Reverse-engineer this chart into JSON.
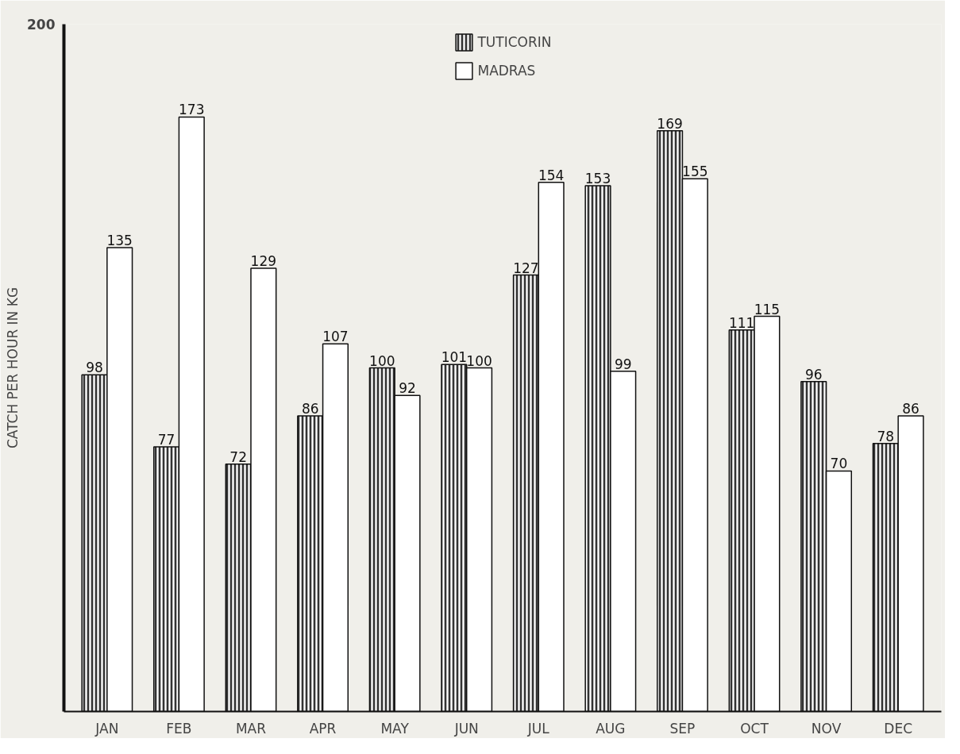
{
  "chart_data": {
    "type": "bar",
    "ylabel": "CATCH PER HOUR IN KG",
    "categories": [
      "JAN",
      "FEB",
      "MAR",
      "APR",
      "MAY",
      "JUN",
      "JUL",
      "AUG",
      "SEP",
      "OCT",
      "NOV",
      "DEC"
    ],
    "series": [
      {
        "name": "TUTICORIN",
        "color": "#333333",
        "values": [
          98,
          77,
          72,
          86,
          100,
          101,
          127,
          153,
          169,
          111,
          96,
          78
        ]
      },
      {
        "name": "MADRAS",
        "color": "#ffffff",
        "values": [
          135,
          173,
          129,
          107,
          92,
          100,
          154,
          99,
          155,
          115,
          70,
          86
        ]
      }
    ],
    "ylim": [
      0,
      200
    ],
    "yticks": [
      200
    ],
    "grid": false,
    "legend": "top",
    "data_labels": true
  }
}
